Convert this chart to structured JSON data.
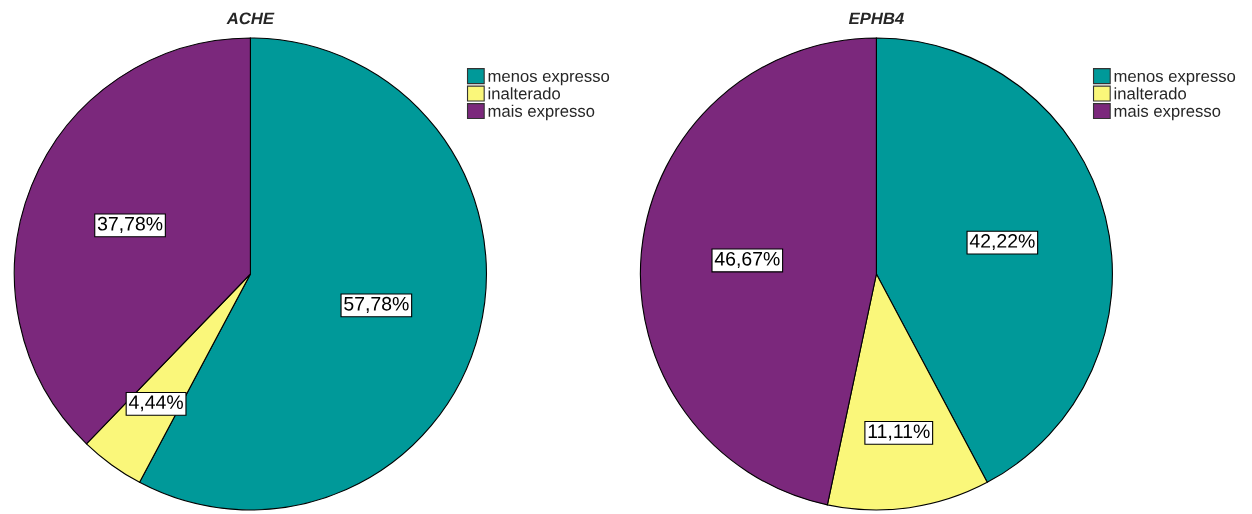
{
  "chart_data": [
    {
      "type": "pie",
      "title": "ACHE",
      "categories": [
        "menos expresso",
        "inalterado",
        "mais expresso"
      ],
      "values": [
        57.78,
        4.44,
        37.78
      ],
      "colors": [
        "#009999",
        "#faf77a",
        "#7b287c"
      ],
      "value_labels": [
        "57,78%",
        "4,44%",
        "37,78%"
      ],
      "legend": "top right"
    },
    {
      "type": "pie",
      "title": "EPHB4",
      "categories": [
        "menos expresso",
        "inalterado",
        "mais expresso"
      ],
      "values": [
        42.22,
        11.11,
        46.67
      ],
      "colors": [
        "#009999",
        "#faf77a",
        "#7b287c"
      ],
      "value_labels": [
        "42,22%",
        "11,11%",
        "46,67%"
      ],
      "legend": "top right"
    }
  ]
}
